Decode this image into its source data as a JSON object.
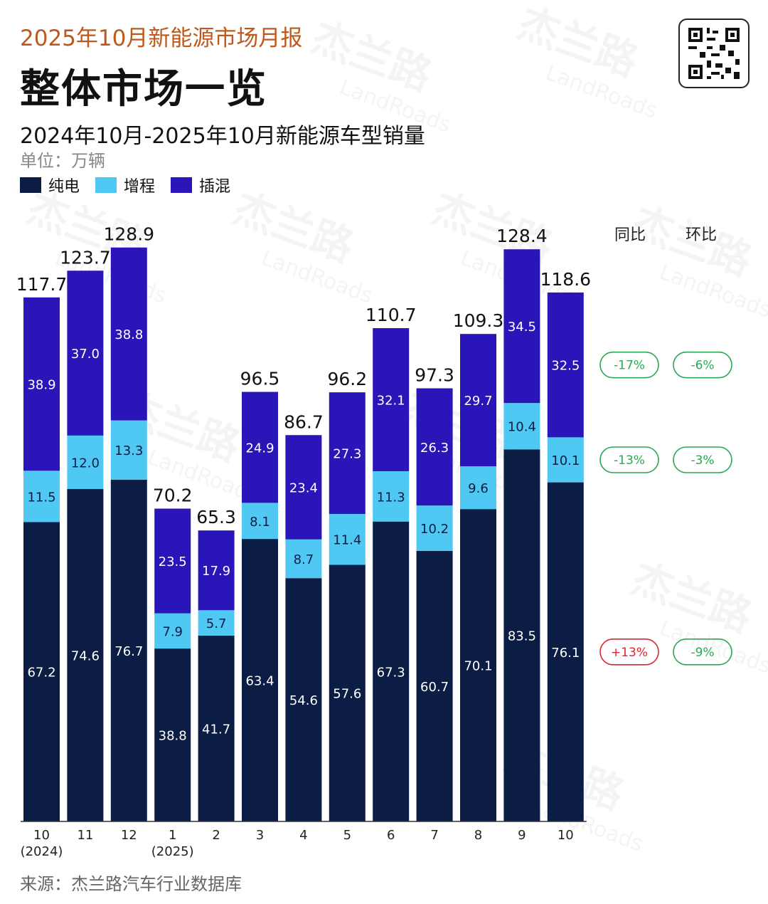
{
  "header": {
    "report_title": "2025年10月新能源市场月报",
    "main_title": "整体市场一览",
    "subtitle": "2024年10月-2025年10月新能源车型销量",
    "unit": "单位：万辆"
  },
  "legend": [
    {
      "label": "纯电",
      "color": "#0b1d45"
    },
    {
      "label": "增程",
      "color": "#4fc8f3"
    },
    {
      "label": "插混",
      "color": "#2a16b8"
    }
  ],
  "watermark": {
    "text": "杰兰路",
    "sub": "LandRoads"
  },
  "comparison": {
    "headers": {
      "yoy": "同比",
      "mom": "环比"
    },
    "rows": [
      {
        "segment": "插混",
        "yoy": "-17%",
        "mom": "-6%",
        "yoy_color": "#2aa854",
        "mom_color": "#2aa854"
      },
      {
        "segment": "增程",
        "yoy": "-13%",
        "mom": "-3%",
        "yoy_color": "#2aa854",
        "mom_color": "#2aa854"
      },
      {
        "segment": "纯电",
        "yoy": "+13%",
        "mom": "-9%",
        "yoy_color": "#d9272e",
        "mom_color": "#2aa854"
      }
    ]
  },
  "chart_data": {
    "type": "bar",
    "stacked": true,
    "title": "2024年10月-2025年10月新能源车型销量",
    "ylabel": "单位：万辆",
    "ylim": [
      0,
      140
    ],
    "grid": false,
    "legend_position": "top-left",
    "categories": [
      {
        "month": "10",
        "year": "(2024)"
      },
      {
        "month": "11",
        "year": ""
      },
      {
        "month": "12",
        "year": ""
      },
      {
        "month": "1",
        "year": "(2025)"
      },
      {
        "month": "2",
        "year": ""
      },
      {
        "month": "3",
        "year": ""
      },
      {
        "month": "4",
        "year": ""
      },
      {
        "month": "5",
        "year": ""
      },
      {
        "month": "6",
        "year": ""
      },
      {
        "month": "7",
        "year": ""
      },
      {
        "month": "8",
        "year": ""
      },
      {
        "month": "9",
        "year": ""
      },
      {
        "month": "10",
        "year": ""
      }
    ],
    "series": [
      {
        "name": "纯电",
        "color": "#0b1d45",
        "label_color": "#ffffff",
        "values": [
          67.2,
          74.6,
          76.7,
          38.8,
          41.7,
          63.4,
          54.6,
          57.6,
          67.3,
          60.7,
          70.1,
          83.5,
          76.1
        ]
      },
      {
        "name": "增程",
        "color": "#4fc8f3",
        "label_color": "#0b1d45",
        "values": [
          11.5,
          12.0,
          13.3,
          7.9,
          5.7,
          8.1,
          8.7,
          11.4,
          11.3,
          10.2,
          9.6,
          10.4,
          10.1
        ]
      },
      {
        "name": "插混",
        "color": "#2a16b8",
        "label_color": "#ffffff",
        "values": [
          38.9,
          37.0,
          38.8,
          23.5,
          17.9,
          24.9,
          23.4,
          27.3,
          32.1,
          26.3,
          29.7,
          34.5,
          32.5
        ]
      }
    ],
    "totals": [
      117.7,
      123.7,
      128.9,
      70.2,
      65.3,
      96.5,
      86.7,
      96.2,
      110.7,
      97.3,
      109.3,
      128.4,
      118.6
    ]
  },
  "footer": {
    "source": "来源：杰兰路汽车行业数据库"
  }
}
